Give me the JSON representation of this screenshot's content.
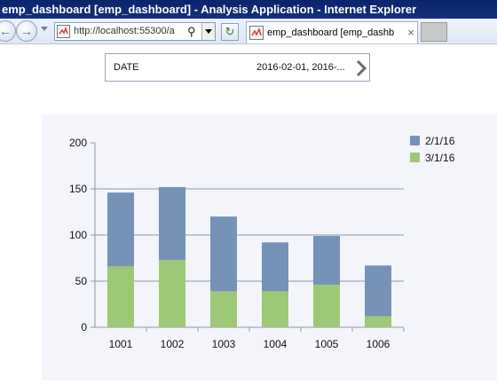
{
  "window": {
    "title": "emp_dashboard [emp_dashboard] - Analysis Application - Internet Explorer"
  },
  "browser": {
    "address": "http://localhost:55300/a",
    "tab_title": "emp_dashboard [emp_dashb",
    "tab_close": "×"
  },
  "filter": {
    "label": "DATE",
    "value": "2016-02-01, 2016-..."
  },
  "colors": {
    "series_1": "#7592b8",
    "series_2": "#9dc977",
    "gridline": "#8c96a6"
  },
  "chart_data": {
    "type": "bar",
    "stacked": true,
    "categories": [
      "1001",
      "1002",
      "1003",
      "1004",
      "1005",
      "1006"
    ],
    "series": [
      {
        "name": "3/1/16",
        "values": [
          66,
          73,
          39,
          39,
          46,
          12
        ]
      },
      {
        "name": "2/1/16",
        "values": [
          80,
          79,
          81,
          53,
          53,
          55
        ]
      }
    ],
    "ylim": [
      0,
      200
    ],
    "yticks": [
      0,
      50,
      100,
      150,
      200
    ],
    "legend_order": [
      "2/1/16",
      "3/1/16"
    ],
    "legend": "top-right",
    "grid": true
  }
}
